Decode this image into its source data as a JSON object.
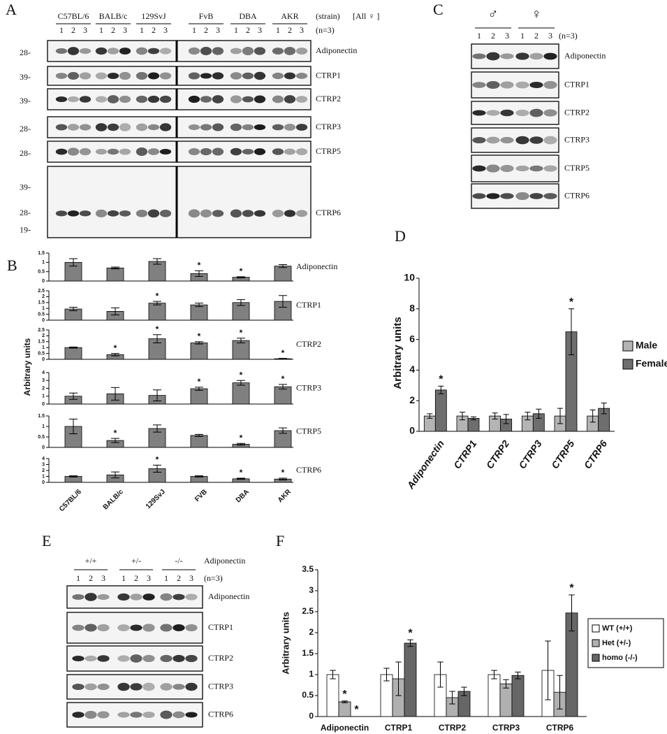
{
  "panel_labels": [
    "A",
    "B",
    "C",
    "D",
    "E",
    "F"
  ],
  "blot_a": {
    "strains": [
      "C57BL/6",
      "BALB/c",
      "129SvJ",
      "FvB",
      "DBA",
      "AKR"
    ],
    "lanes": [
      "1",
      "2",
      "3"
    ],
    "strain_note": "(strain)",
    "sex_note": "[All ♀ ]",
    "n_note": "(n=3)",
    "rows": [
      {
        "label": "Adiponectin",
        "markers": [
          "28-"
        ]
      },
      {
        "label": "CTRP1",
        "markers": [
          "39-"
        ]
      },
      {
        "label": "CTRP2",
        "markers": [
          "39-"
        ]
      },
      {
        "label": "CTRP3",
        "markers": [
          "28-"
        ]
      },
      {
        "label": "CTRP5",
        "markers": [
          "28-"
        ]
      },
      {
        "label": "CTRP6",
        "markers": [
          "39-",
          "28-",
          "19-"
        ]
      }
    ]
  },
  "blot_c": {
    "groups": [
      "♂",
      "♀"
    ],
    "lanes": [
      "1",
      "2",
      "3"
    ],
    "n_note": "(n=3)",
    "rows": [
      "Adiponectin",
      "CTRP1",
      "CTRP2",
      "CTRP3",
      "CTRP5",
      "CTRP6"
    ]
  },
  "blot_e": {
    "groups": [
      "+/+",
      "+/-",
      "-/-"
    ],
    "gene": "Adiponectin",
    "lanes": [
      "1",
      "2",
      "3"
    ],
    "n_note": "(n=3)",
    "rows": [
      "Adiponectin",
      "CTRP1",
      "CTRP2",
      "CTRP3",
      "CTRP6"
    ]
  },
  "chart_data": [
    {
      "type": "bar",
      "ylabel": "Arbitrary units",
      "categories": [
        "C57BL/6",
        "BALB/c",
        "129SvJ",
        "FVB",
        "DBA",
        "AKR"
      ],
      "color": "#808080",
      "subplots": [
        {
          "name": "Adiponectin",
          "ylim": [
            0,
            1.5
          ],
          "yticks": [
            0,
            0.5,
            1,
            1.5
          ],
          "values": [
            1.0,
            0.7,
            1.05,
            0.4,
            0.2,
            0.8
          ],
          "errors": [
            0.2,
            0.05,
            0.15,
            0.15,
            0.03,
            0.08
          ],
          "stars": [
            null,
            null,
            null,
            "*",
            "*",
            null
          ]
        },
        {
          "name": "CTRP1",
          "ylim": [
            0,
            2.5
          ],
          "yticks": [
            0,
            0.5,
            1,
            1.5,
            2,
            2.5
          ],
          "values": [
            0.95,
            0.75,
            1.45,
            1.3,
            1.5,
            1.6
          ],
          "errors": [
            0.15,
            0.3,
            0.15,
            0.15,
            0.25,
            0.5
          ],
          "stars": [
            null,
            null,
            "*",
            null,
            null,
            null
          ]
        },
        {
          "name": "CTRP2",
          "ylim": [
            0,
            2.5
          ],
          "yticks": [
            0,
            0.5,
            1,
            1.5,
            2,
            2.5
          ],
          "values": [
            1.0,
            0.4,
            1.75,
            1.4,
            1.6,
            0.05
          ],
          "errors": [
            0.05,
            0.1,
            0.35,
            0.1,
            0.2,
            0.03
          ],
          "stars": [
            null,
            "*",
            "*",
            "*",
            "*",
            "*"
          ]
        },
        {
          "name": "CTRP3",
          "ylim": [
            0,
            4
          ],
          "yticks": [
            0,
            1,
            2,
            3,
            4
          ],
          "values": [
            1.0,
            1.3,
            1.1,
            1.95,
            2.7,
            2.2
          ],
          "errors": [
            0.4,
            0.8,
            0.7,
            0.2,
            0.3,
            0.3
          ],
          "stars": [
            null,
            null,
            null,
            "*",
            "*",
            "*"
          ]
        },
        {
          "name": "CTRP5",
          "ylim": [
            0,
            1.5
          ],
          "yticks": [
            0,
            0.5,
            1,
            1.5
          ],
          "values": [
            1.0,
            0.33,
            0.9,
            0.57,
            0.15,
            0.8
          ],
          "errors": [
            0.35,
            0.1,
            0.17,
            0.05,
            0.04,
            0.13
          ],
          "stars": [
            null,
            "*",
            null,
            null,
            "*",
            null
          ]
        },
        {
          "name": "CTRP6",
          "ylim": [
            0,
            4
          ],
          "yticks": [
            0,
            1,
            2,
            3,
            4
          ],
          "values": [
            1.0,
            1.25,
            2.3,
            1.0,
            0.6,
            0.55
          ],
          "errors": [
            0.1,
            0.5,
            0.6,
            0.1,
            0.1,
            0.15
          ],
          "stars": [
            null,
            null,
            "*",
            null,
            "*",
            "*"
          ]
        }
      ]
    },
    {
      "type": "bar",
      "ylabel": "Arbitrary units",
      "categories": [
        "Adiponectin",
        "CTRP1",
        "CTRP2",
        "CTRP3",
        "CTRP5",
        "CTRP6"
      ],
      "ylim": [
        0,
        10
      ],
      "yticks": [
        0,
        2,
        4,
        6,
        8,
        10
      ],
      "legend": "right",
      "series": [
        {
          "name": "Male",
          "color": "#b4b4b4",
          "values": [
            1,
            1,
            1,
            1,
            1,
            1
          ],
          "errors": [
            0.15,
            0.25,
            0.2,
            0.25,
            0.5,
            0.4
          ],
          "stars": [
            null,
            null,
            null,
            null,
            null,
            null
          ]
        },
        {
          "name": "Female",
          "color": "#6e6e6e",
          "values": [
            2.7,
            0.85,
            0.8,
            1.15,
            6.5,
            1.5
          ],
          "errors": [
            0.25,
            0.1,
            0.3,
            0.3,
            1.5,
            0.35
          ],
          "stars": [
            "*",
            null,
            null,
            null,
            "*",
            null
          ]
        }
      ]
    },
    {
      "type": "bar",
      "ylabel": "Arbitrary units",
      "categories": [
        "Adiponectin",
        "CTRP1",
        "CTRP2",
        "CTRP3",
        "CTRP6"
      ],
      "ylim": [
        0,
        3.5
      ],
      "yticks": [
        0,
        0.5,
        1,
        1.5,
        2,
        2.5,
        3,
        3.5
      ],
      "legend": "right",
      "series": [
        {
          "name": "WT (+/+)",
          "color": "#ffffff",
          "values": [
            1,
            1,
            1,
            1,
            1.1
          ],
          "errors": [
            0.1,
            0.15,
            0.3,
            0.1,
            0.7
          ],
          "stars": [
            null,
            null,
            null,
            null,
            null
          ]
        },
        {
          "name": "Het (+/-)",
          "color": "#b0b0b0",
          "values": [
            0.35,
            0.9,
            0.45,
            0.78,
            0.58
          ],
          "errors": [
            0.02,
            0.4,
            0.15,
            0.1,
            0.4
          ],
          "stars": [
            "*",
            null,
            null,
            null,
            null
          ]
        },
        {
          "name": "homo (-/-)",
          "color": "#666666",
          "values": [
            0,
            1.75,
            0.6,
            0.98,
            2.47
          ],
          "errors": [
            0,
            0.08,
            0.1,
            0.08,
            0.43
          ],
          "stars": [
            "*",
            "*",
            null,
            null,
            "*"
          ]
        }
      ]
    }
  ]
}
